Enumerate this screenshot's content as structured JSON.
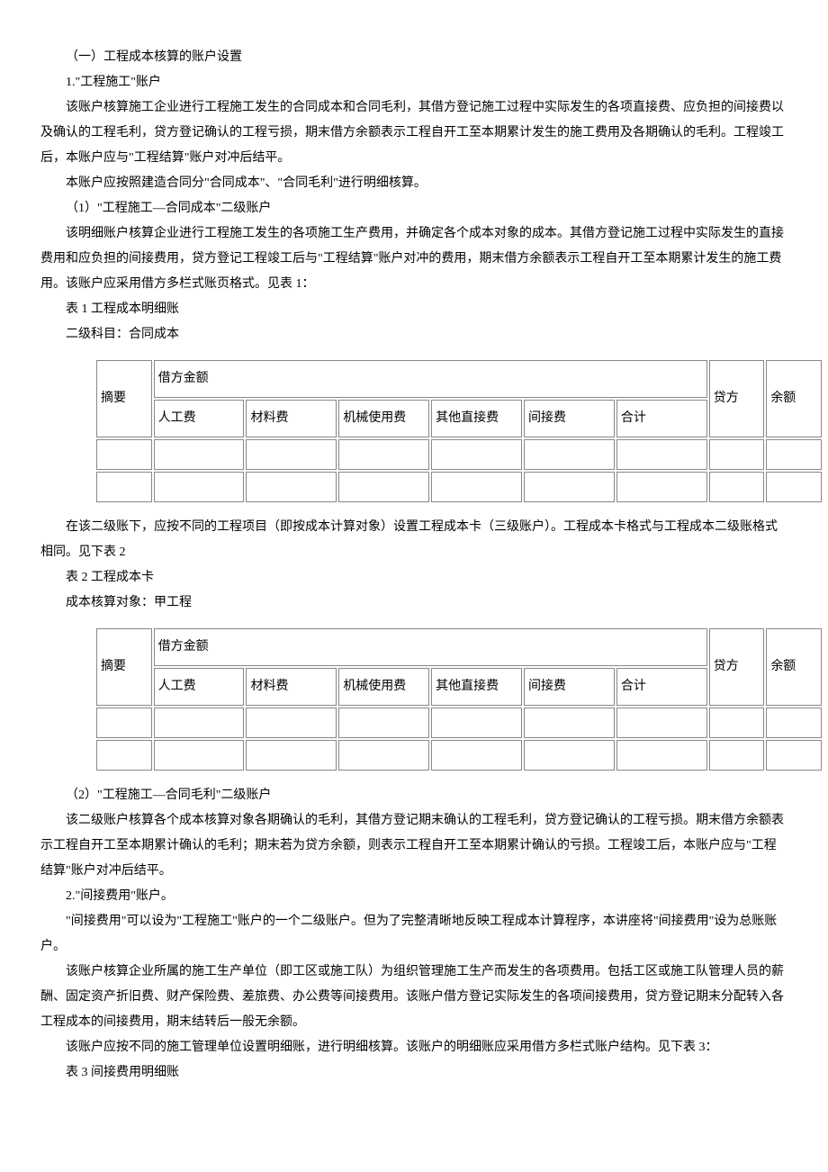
{
  "paragraphs": {
    "p1": "（一）工程成本核算的账户设置",
    "p2": "1.\"工程施工\"账户",
    "p3": "该账户核算施工企业进行工程施工发生的合同成本和合同毛利，其借方登记施工过程中实际发生的各项直接费、应负担的间接费以及确认的工程毛利，贷方登记确认的工程亏损，期末借方余额表示工程自开工至本期累计发生的施工费用及各期确认的毛利。工程竣工后，本账户应与\"工程结算\"账户对冲后结平。",
    "p4": "本账户应按照建造合同分\"合同成本\"、\"合同毛利\"进行明细核算。",
    "p5": "（1）\"工程施工—合同成本\"二级账户",
    "p6": "该明细账户核算企业进行工程施工发生的各项施工生产费用，并确定各个成本对象的成本。其借方登记施工过程中实际发生的直接费用和应负担的间接费用，贷方登记工程竣工后与\"工程结算\"账户对冲的费用，期末借方余额表示工程自开工至本期累计发生的施工费用。该账户应采用借方多栏式账页格式。见表 1：",
    "p7": "表 1 工程成本明细账",
    "p8": "二级科目：合同成本",
    "p9": "在该二级账下，应按不同的工程项目（即按成本计算对象）设置工程成本卡（三级账户）。工程成本卡格式与工程成本二级账格式相同。见下表 2",
    "p10": "表 2 工程成本卡",
    "p11": "成本核算对象：甲工程",
    "p12": "（2）\"工程施工—合同毛利\"二级账户",
    "p13": "该二级账户核算各个成本核算对象各期确认的毛利，其借方登记期末确认的工程毛利，贷方登记确认的工程亏损。期末借方余额表示工程自开工至本期累计确认的毛利；期末若为贷方余额，则表示工程自开工至本期累计确认的亏损。工程竣工后，本账户应与\"工程结算\"账户对冲后结平。",
    "p14": "2.\"间接费用\"账户。",
    "p15": "\"间接费用\"可以设为\"工程施工\"账户的一个二级账户。但为了完整清晰地反映工程成本计算程序，本讲座将\"间接费用\"设为总账账户。",
    "p16": "该账户核算企业所属的施工生产单位（即工区或施工队）为组织管理施工生产而发生的各项费用。包括工区或施工队管理人员的薪酬、固定资产折旧费、财产保险费、差旅费、办公费等间接费用。该账户借方登记实际发生的各项间接费用，贷方登记期末分配转入各工程成本的间接费用，期末结转后一般无余额。",
    "p17": "该账户应按不同的施工管理单位设置明细账，进行明细核算。该账户的明细账应采用借方多栏式账户结构。见下表 3：",
    "p18": "表 3 间接费用明细账"
  },
  "table": {
    "headers": {
      "summary": "摘要",
      "debit": "借方金额",
      "labor": "人工费",
      "material": "材料费",
      "machine": "机械使用费",
      "other": "其他直接费",
      "indirect": "间接费",
      "total": "合计",
      "credit": "贷方",
      "balance": "余额"
    }
  }
}
